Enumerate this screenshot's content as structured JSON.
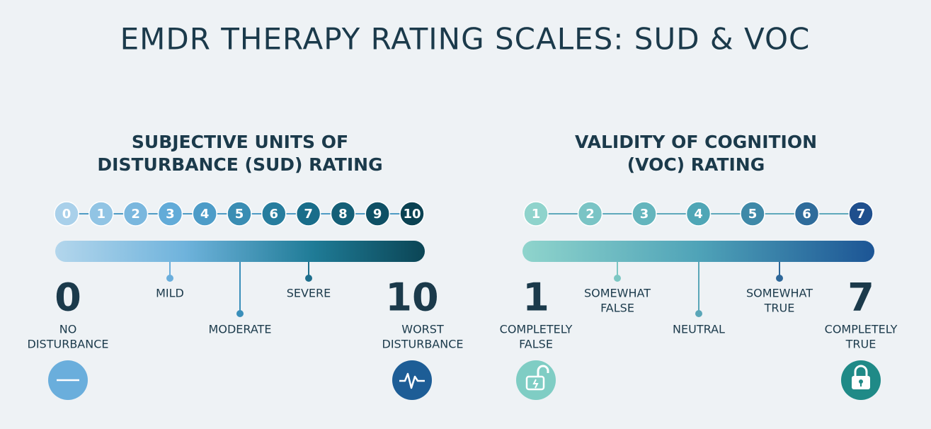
{
  "title": "EMDR THERAPY RATING SCALES: SUD & VOC",
  "scales": [
    {
      "title_lines": [
        "SUBJECTIVE UNITS OF",
        "DISTURBANCE (SUD) RATING"
      ],
      "points": [
        0,
        1,
        2,
        3,
        4,
        5,
        6,
        7,
        8,
        9,
        10
      ],
      "low_label_lines": [
        "NO",
        "DISTURBANCE"
      ],
      "high_label_lines": [
        "WORST",
        "DISTURBANCE"
      ],
      "anchors": [
        {
          "label_lines": [
            "MILD"
          ]
        },
        {
          "label_lines": [
            "MODERATE"
          ]
        },
        {
          "label_lines": [
            "SEVERE"
          ]
        }
      ]
    },
    {
      "title_lines": [
        "VALIDITY OF COGNITION",
        "(VOC) RATING"
      ],
      "points": [
        1,
        2,
        3,
        4,
        5,
        6,
        7
      ],
      "low_label_lines": [
        "COMPLETELY",
        "FALSE"
      ],
      "high_label_lines": [
        "COMPLETELY",
        "TRUE"
      ],
      "anchors": [
        {
          "label_lines": [
            "SOMEWHAT",
            "FALSE"
          ]
        },
        {
          "label_lines": [
            "NEUTRAL"
          ]
        },
        {
          "label_lines": [
            "SOMEWHAT",
            "TRUE"
          ]
        }
      ]
    }
  ]
}
